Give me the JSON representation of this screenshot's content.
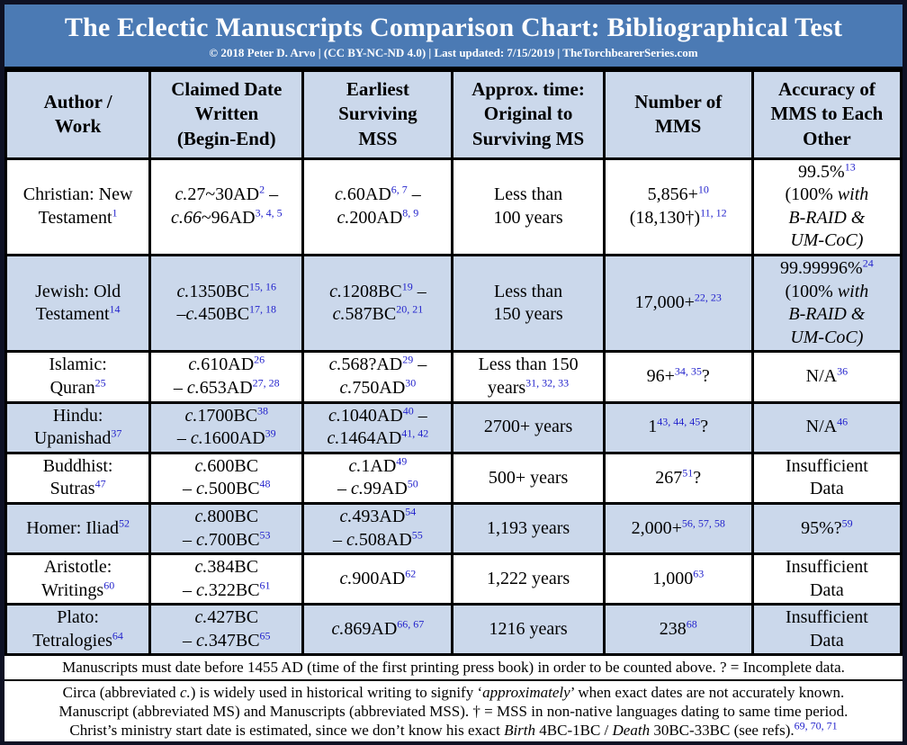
{
  "colors": {
    "band": "#4b7ab4",
    "shade": "#cbd8eb",
    "superscript": "#2323cc",
    "frame": "#0e1124"
  },
  "header": {
    "title": "The Eclectic Manuscripts Comparison Chart: Bibliographical Test",
    "subtitle": "© 2018 Peter D. Arvo | (CC BY-NC-ND 4.0) | Last updated: 7/15/2019 | TheTorchbearerSeries.com"
  },
  "table": {
    "columns": [
      {
        "lines": [
          "Author /",
          "Work"
        ]
      },
      {
        "lines": [
          "Claimed Date",
          "Written",
          "(Begin-End)"
        ]
      },
      {
        "lines": [
          "Earliest",
          "Surviving",
          "MSS"
        ]
      },
      {
        "lines": [
          "Approx. time:",
          "Original to",
          "Surviving MS"
        ]
      },
      {
        "lines": [
          "Number of",
          "MMS"
        ]
      },
      {
        "lines": [
          "Accuracy of",
          "MMS to Each",
          "Other"
        ]
      }
    ],
    "col_widths_pct": [
      16.1,
      17.1,
      16.7,
      16.9,
      16.6,
      16.6
    ],
    "rows": [
      {
        "shaded": false,
        "cells": [
          [
            {
              "t": "Christian: New"
            },
            {
              "br": true
            },
            {
              "t": "Testament"
            },
            {
              "t": "1",
              "sup": true
            }
          ],
          [
            {
              "t": "c.",
              "i": true
            },
            {
              "t": "27~30AD"
            },
            {
              "t": "2",
              "sup": true
            },
            {
              "t": " –"
            },
            {
              "br": true
            },
            {
              "t": "c.66",
              "i": true
            },
            {
              "t": "~96AD"
            },
            {
              "t": "3, 4, 5",
              "sup": true
            }
          ],
          [
            {
              "t": "c.",
              "i": true
            },
            {
              "t": "60AD"
            },
            {
              "t": "6, 7",
              "sup": true
            },
            {
              "t": " –"
            },
            {
              "br": true
            },
            {
              "t": "c.",
              "i": true
            },
            {
              "t": "200AD"
            },
            {
              "t": "8, 9",
              "sup": true
            }
          ],
          [
            {
              "t": "Less than"
            },
            {
              "br": true
            },
            {
              "t": "100 years"
            }
          ],
          [
            {
              "t": "5,856+"
            },
            {
              "t": "10",
              "sup": true
            },
            {
              "br": true
            },
            {
              "t": "(18,130†)"
            },
            {
              "t": "11, 12",
              "sup": true
            }
          ],
          [
            {
              "t": "99.5%"
            },
            {
              "t": "13",
              "sup": true
            },
            {
              "br": true
            },
            {
              "t": "(100% "
            },
            {
              "t": "with",
              "i": true
            },
            {
              "br": true
            },
            {
              "t": "B-RAID &",
              "i": true
            },
            {
              "br": true
            },
            {
              "t": "UM-CoC)",
              "i": true
            }
          ]
        ]
      },
      {
        "shaded": true,
        "cells": [
          [
            {
              "t": "Jewish: Old"
            },
            {
              "br": true
            },
            {
              "t": "Testament"
            },
            {
              "t": "14",
              "sup": true
            }
          ],
          [
            {
              "t": "c.",
              "i": true
            },
            {
              "t": "1350BC"
            },
            {
              "t": "15, 16",
              "sup": true
            },
            {
              "br": true
            },
            {
              "t": "–"
            },
            {
              "t": "c.",
              "i": true
            },
            {
              "t": "450BC"
            },
            {
              "t": "17, 18",
              "sup": true
            }
          ],
          [
            {
              "t": "c.",
              "i": true
            },
            {
              "t": "1208BC"
            },
            {
              "t": "19",
              "sup": true
            },
            {
              "t": " –"
            },
            {
              "br": true
            },
            {
              "t": "c.",
              "i": true
            },
            {
              "t": "587BC"
            },
            {
              "t": "20, 21",
              "sup": true
            }
          ],
          [
            {
              "t": "Less than"
            },
            {
              "br": true
            },
            {
              "t": "150 years"
            }
          ],
          [
            {
              "t": "17,000+"
            },
            {
              "t": "22, 23",
              "sup": true
            }
          ],
          [
            {
              "t": "99.99996%"
            },
            {
              "t": "24",
              "sup": true
            },
            {
              "br": true
            },
            {
              "t": "(100% "
            },
            {
              "t": "with",
              "i": true
            },
            {
              "br": true
            },
            {
              "t": "B-RAID &",
              "i": true
            },
            {
              "br": true
            },
            {
              "t": "UM-CoC)",
              "i": true
            }
          ]
        ]
      },
      {
        "shaded": false,
        "cells": [
          [
            {
              "t": "Islamic:"
            },
            {
              "br": true
            },
            {
              "t": "Quran"
            },
            {
              "t": "25",
              "sup": true
            }
          ],
          [
            {
              "t": "c.",
              "i": true
            },
            {
              "t": "610AD"
            },
            {
              "t": "26",
              "sup": true
            },
            {
              "br": true
            },
            {
              "t": "– "
            },
            {
              "t": "c.",
              "i": true
            },
            {
              "t": "653AD"
            },
            {
              "t": "27, 28",
              "sup": true
            }
          ],
          [
            {
              "t": "c.",
              "i": true
            },
            {
              "t": "568?AD"
            },
            {
              "t": "29",
              "sup": true
            },
            {
              "t": " –"
            },
            {
              "br": true
            },
            {
              "t": "c.",
              "i": true
            },
            {
              "t": "750AD"
            },
            {
              "t": "30",
              "sup": true
            }
          ],
          [
            {
              "t": "Less than 150"
            },
            {
              "br": true
            },
            {
              "t": "years"
            },
            {
              "t": "31, 32, 33",
              "sup": true
            }
          ],
          [
            {
              "t": "96+"
            },
            {
              "t": "34, 35",
              "sup": true
            },
            {
              "t": "?"
            }
          ],
          [
            {
              "t": "N/A"
            },
            {
              "t": "36",
              "sup": true
            }
          ]
        ]
      },
      {
        "shaded": true,
        "cells": [
          [
            {
              "t": "Hindu:"
            },
            {
              "br": true
            },
            {
              "t": "Upanishad"
            },
            {
              "t": "37",
              "sup": true
            }
          ],
          [
            {
              "t": "c.",
              "i": true
            },
            {
              "t": "1700BC"
            },
            {
              "t": "38",
              "sup": true
            },
            {
              "br": true
            },
            {
              "t": "– "
            },
            {
              "t": "c.",
              "i": true
            },
            {
              "t": "1600AD"
            },
            {
              "t": "39",
              "sup": true
            }
          ],
          [
            {
              "t": "c.",
              "i": true
            },
            {
              "t": "1040AD"
            },
            {
              "t": "40",
              "sup": true
            },
            {
              "t": " –"
            },
            {
              "br": true
            },
            {
              "t": "c.",
              "i": true
            },
            {
              "t": "1464AD"
            },
            {
              "t": "41, 42",
              "sup": true
            }
          ],
          [
            {
              "t": "2700+ years"
            }
          ],
          [
            {
              "t": "1"
            },
            {
              "t": "43, 44, 45",
              "sup": true
            },
            {
              "t": "?"
            }
          ],
          [
            {
              "t": "N/A"
            },
            {
              "t": "46",
              "sup": true
            }
          ]
        ]
      },
      {
        "shaded": false,
        "cells": [
          [
            {
              "t": "Buddhist:"
            },
            {
              "br": true
            },
            {
              "t": "Sutras"
            },
            {
              "t": "47",
              "sup": true
            }
          ],
          [
            {
              "t": "c.",
              "i": true
            },
            {
              "t": "600BC"
            },
            {
              "br": true
            },
            {
              "t": "– "
            },
            {
              "t": "c.",
              "i": true
            },
            {
              "t": "500BC"
            },
            {
              "t": "48",
              "sup": true
            }
          ],
          [
            {
              "t": "c.",
              "i": true
            },
            {
              "t": "1AD"
            },
            {
              "t": "49",
              "sup": true
            },
            {
              "br": true
            },
            {
              "t": "– "
            },
            {
              "t": "c.",
              "i": true
            },
            {
              "t": "99AD"
            },
            {
              "t": "50",
              "sup": true
            }
          ],
          [
            {
              "t": "500+ years"
            }
          ],
          [
            {
              "t": "267"
            },
            {
              "t": "51",
              "sup": true
            },
            {
              "t": "?"
            }
          ],
          [
            {
              "t": "Insufficient"
            },
            {
              "br": true
            },
            {
              "t": "Data"
            }
          ]
        ]
      },
      {
        "shaded": true,
        "cells": [
          [
            {
              "t": "Homer: Iliad"
            },
            {
              "t": "52",
              "sup": true
            }
          ],
          [
            {
              "t": "c.",
              "i": true
            },
            {
              "t": "800BC"
            },
            {
              "br": true
            },
            {
              "t": "– "
            },
            {
              "t": "c.",
              "i": true
            },
            {
              "t": "700BC"
            },
            {
              "t": "53",
              "sup": true
            }
          ],
          [
            {
              "t": "c.",
              "i": true
            },
            {
              "t": "493AD"
            },
            {
              "t": "54",
              "sup": true
            },
            {
              "br": true
            },
            {
              "t": "– "
            },
            {
              "t": "c.",
              "i": true
            },
            {
              "t": "508AD"
            },
            {
              "t": "55",
              "sup": true
            }
          ],
          [
            {
              "t": "1,193 years"
            }
          ],
          [
            {
              "t": "2,000+"
            },
            {
              "t": "56, 57, 58",
              "sup": true
            }
          ],
          [
            {
              "t": "95%?"
            },
            {
              "t": "59",
              "sup": true
            }
          ]
        ]
      },
      {
        "shaded": false,
        "cells": [
          [
            {
              "t": "Aristotle:"
            },
            {
              "br": true
            },
            {
              "t": "Writings"
            },
            {
              "t": "60",
              "sup": true
            }
          ],
          [
            {
              "t": "c.",
              "i": true
            },
            {
              "t": "384BC"
            },
            {
              "br": true
            },
            {
              "t": "– "
            },
            {
              "t": "c.",
              "i": true
            },
            {
              "t": "322BC"
            },
            {
              "t": "61",
              "sup": true
            }
          ],
          [
            {
              "t": "c.",
              "i": true
            },
            {
              "t": "900AD"
            },
            {
              "t": "62",
              "sup": true
            }
          ],
          [
            {
              "t": "1,222 years"
            }
          ],
          [
            {
              "t": "1,000"
            },
            {
              "t": "63",
              "sup": true
            }
          ],
          [
            {
              "t": "Insufficient"
            },
            {
              "br": true
            },
            {
              "t": "Data"
            }
          ]
        ]
      },
      {
        "shaded": true,
        "cells": [
          [
            {
              "t": "Plato:"
            },
            {
              "br": true
            },
            {
              "t": "Tetralogies"
            },
            {
              "t": "64",
              "sup": true
            }
          ],
          [
            {
              "t": "c.",
              "i": true
            },
            {
              "t": "427BC"
            },
            {
              "br": true
            },
            {
              "t": "– "
            },
            {
              "t": "c.",
              "i": true
            },
            {
              "t": "347BC"
            },
            {
              "t": "65",
              "sup": true
            }
          ],
          [
            {
              "t": "c.",
              "i": true
            },
            {
              "t": "869AD"
            },
            {
              "t": "66, 67",
              "sup": true
            }
          ],
          [
            {
              "t": "1216 years"
            }
          ],
          [
            {
              "t": "238"
            },
            {
              "t": "68",
              "sup": true
            }
          ],
          [
            {
              "t": "Insufficient"
            },
            {
              "br": true
            },
            {
              "t": "Data"
            }
          ]
        ]
      }
    ]
  },
  "notes": [
    [
      {
        "t": "Manuscripts must date before 1455 AD (time of the first printing press book) in order to be counted above. ? = Incomplete data."
      }
    ],
    [
      {
        "t": "Circa (abbreviated "
      },
      {
        "t": "c.",
        "i": true
      },
      {
        "t": ") is widely used in historical writing to signify ‘"
      },
      {
        "t": "approximately",
        "i": true
      },
      {
        "t": "’ when exact dates are not accurately known."
      }
    ],
    [
      {
        "t": "Manuscript (abbreviated MS) and Manuscripts (abbreviated MSS). † = MSS in non-native languages dating to same time period."
      }
    ],
    [
      {
        "t": "Christ’s ministry start date is estimated, since we don’t know his exact "
      },
      {
        "t": "Birth",
        "i": true
      },
      {
        "t": " 4BC-1BC / "
      },
      {
        "t": "Death",
        "i": true
      },
      {
        "t": " 30BC-33BC (see refs)."
      },
      {
        "t": "69, 70, 71",
        "sup": true
      }
    ]
  ],
  "chart_data": {
    "type": "table",
    "title": "The Eclectic Manuscripts Comparison Chart: Bibliographical Test",
    "columns": [
      "Author / Work",
      "Claimed Date Written (Begin-End)",
      "Earliest Surviving MSS",
      "Approx. time: Original to Surviving MS",
      "Number of MMS",
      "Accuracy of MMS to Each Other"
    ],
    "rows": [
      [
        "Christian: New Testament",
        "c.27~30AD – c.66~96AD",
        "c.60AD – c.200AD",
        "Less than 100 years",
        "5,856+ (18,130†)",
        "99.5% (100% with B-RAID & UM-CoC)"
      ],
      [
        "Jewish: Old Testament",
        "c.1350BC – c.450BC",
        "c.1208BC – c.587BC",
        "Less than 150 years",
        "17,000+",
        "99.99996% (100% with B-RAID & UM-CoC)"
      ],
      [
        "Islamic: Quran",
        "c.610AD – c.653AD",
        "c.568?AD – c.750AD",
        "Less than 150 years",
        "96+?",
        "N/A"
      ],
      [
        "Hindu: Upanishad",
        "c.1700BC – c.1600AD",
        "c.1040AD – c.1464AD",
        "2700+ years",
        "1?",
        "N/A"
      ],
      [
        "Buddhist: Sutras",
        "c.600BC – c.500BC",
        "c.1AD – c.99AD",
        "500+ years",
        "267?",
        "Insufficient Data"
      ],
      [
        "Homer: Iliad",
        "c.800BC – c.700BC",
        "c.493AD – c.508AD",
        "1,193 years",
        "2,000+",
        "95%?"
      ],
      [
        "Aristotle: Writings",
        "c.384BC – c.322BC",
        "c.900AD",
        "1,222 years",
        "1,000",
        "Insufficient Data"
      ],
      [
        "Plato: Tetralogies",
        "c.427BC – c.347BC",
        "c.869AD",
        "1216 years",
        "238",
        "Insufficient Data"
      ]
    ]
  }
}
